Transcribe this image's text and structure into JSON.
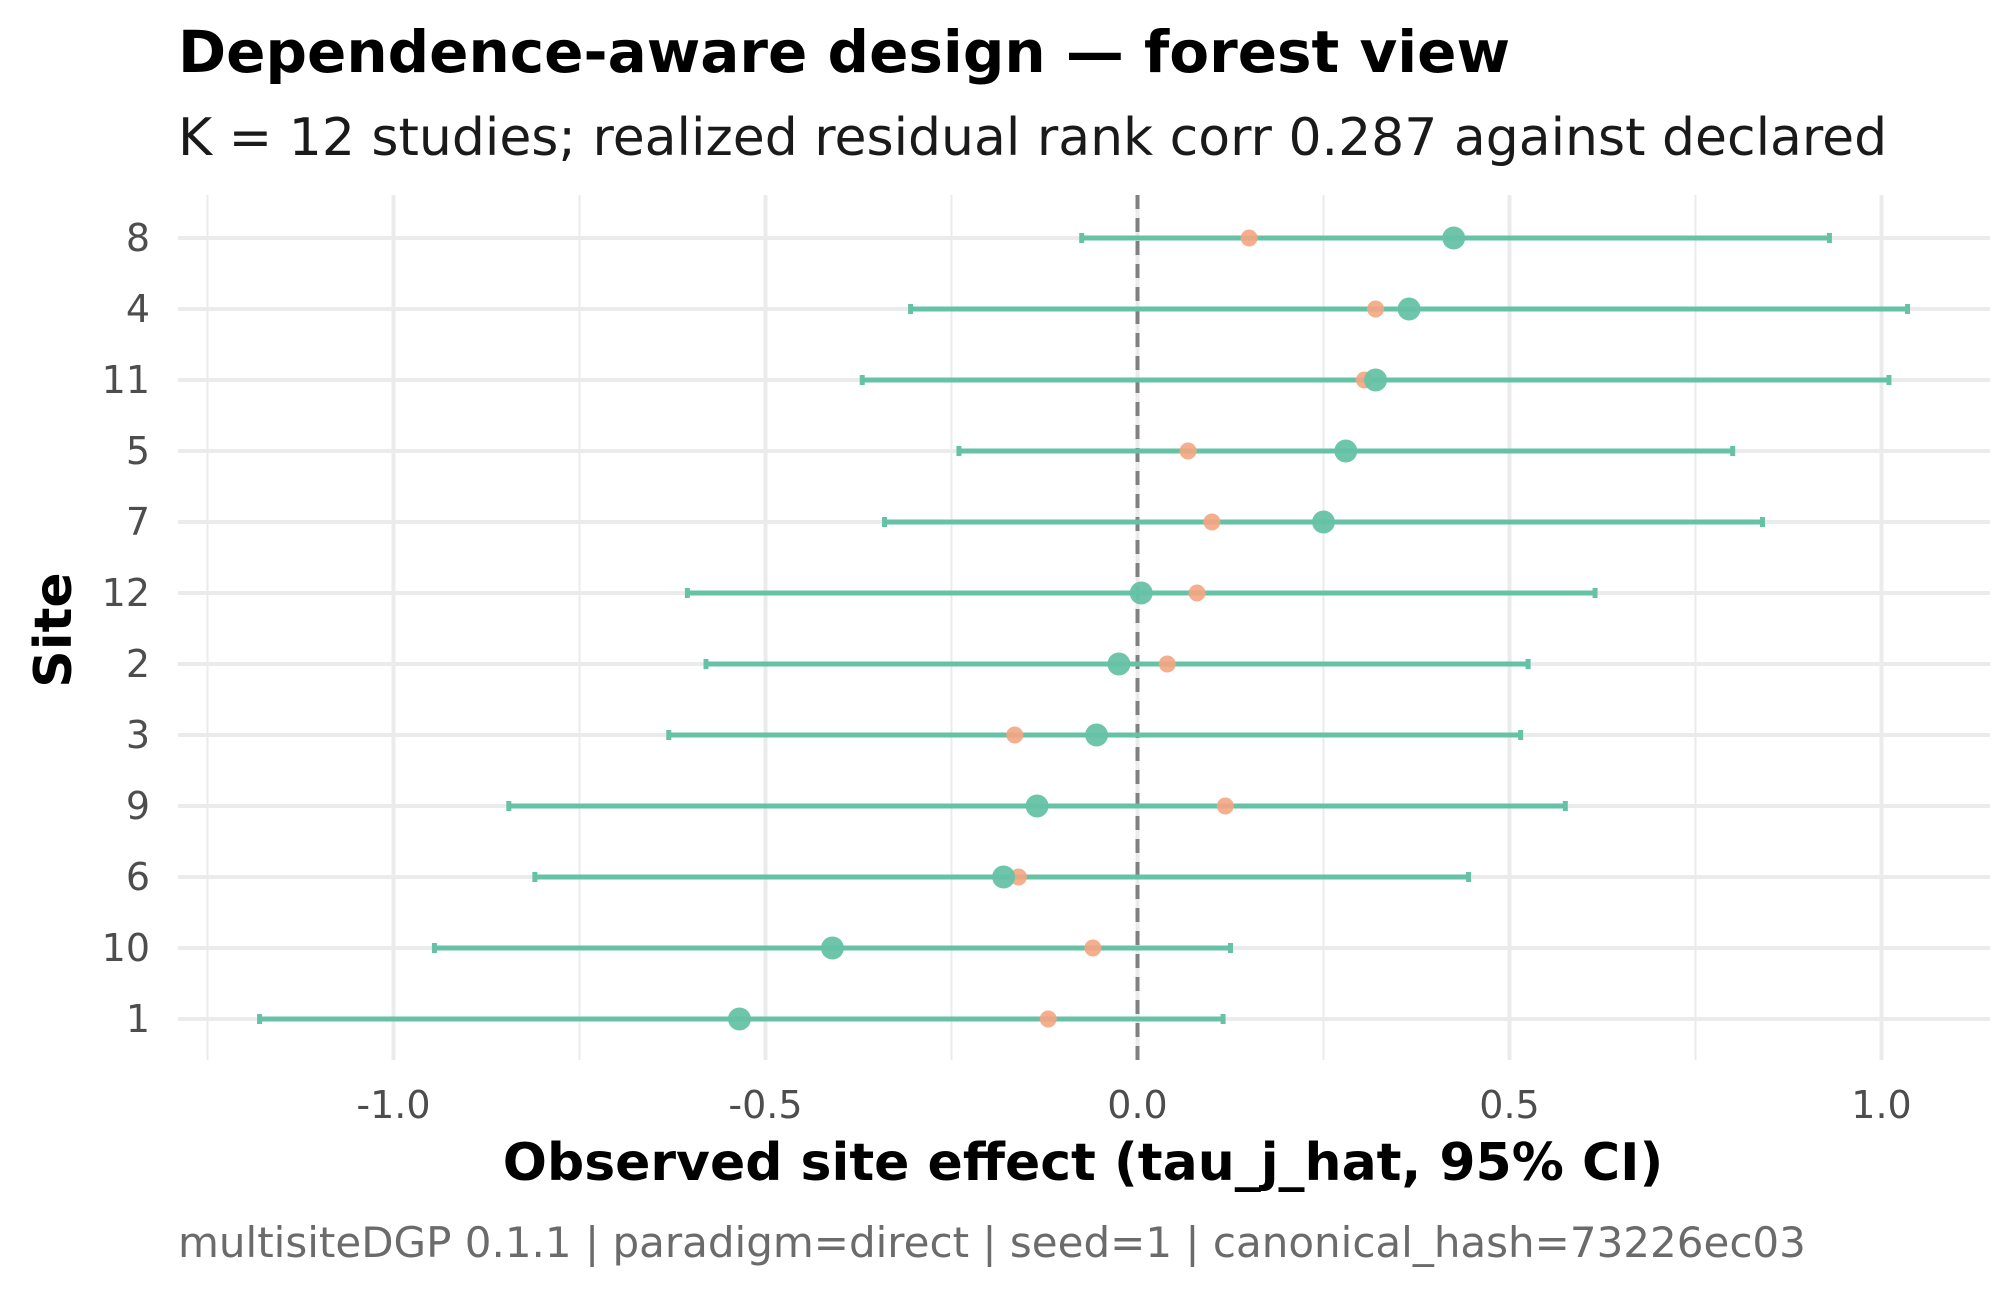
{
  "colors": {
    "observed": "#66c2a5",
    "true": "#f4a582",
    "zero_line": "#808080",
    "grid": "#ebebeb"
  },
  "chart_data": {
    "type": "scatter",
    "title": "Dependence-aware design — forest view",
    "subtitle": "K = 12 studies; realized residual rank corr 0.287 against declared",
    "xlabel": "Observed site effect (tau_j_hat, 95% CI)",
    "ylabel": "Site",
    "caption": "multisiteDGP 0.1.1 | paradigm=direct | seed=1 | canonical_hash=73226ec03",
    "xlim": [
      -1.25,
      1.15
    ],
    "x_ticks": [
      -1.0,
      -0.5,
      0.0,
      0.5,
      1.0
    ],
    "x_tick_labels": [
      "-1.0",
      "-0.5",
      "0.0",
      "0.5",
      "1.0"
    ],
    "reference_line_x": 0,
    "grid": true,
    "categories": [
      "8",
      "4",
      "11",
      "5",
      "7",
      "12",
      "2",
      "3",
      "9",
      "6",
      "10",
      "1"
    ],
    "series": [
      {
        "key": "observed",
        "estimate": [
          0.425,
          0.365,
          0.32,
          0.28,
          0.25,
          0.005,
          -0.025,
          -0.055,
          -0.135,
          -0.18,
          -0.41,
          -0.535
        ],
        "ci_low": [
          -0.075,
          -0.305,
          -0.37,
          -0.24,
          -0.34,
          -0.605,
          -0.58,
          -0.63,
          -0.845,
          -0.81,
          -0.945,
          -1.18
        ],
        "ci_high": [
          0.93,
          1.035,
          1.01,
          0.8,
          0.84,
          0.615,
          0.525,
          0.515,
          0.575,
          0.445,
          0.125,
          0.115
        ]
      },
      {
        "key": "true",
        "values": [
          0.15,
          0.32,
          0.305,
          0.068,
          0.1,
          0.08,
          0.04,
          -0.165,
          0.118,
          -0.16,
          -0.06,
          -0.12
        ]
      }
    ]
  }
}
